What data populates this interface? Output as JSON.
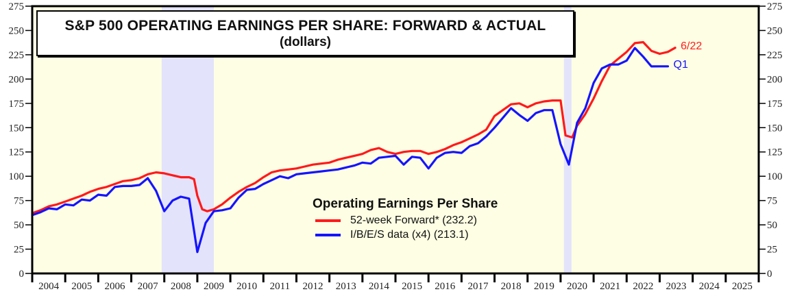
{
  "chart_data": {
    "type": "line",
    "title": "S&P 500 OPERATING EARNINGS PER SHARE: FORWARD & ACTUAL",
    "subtitle": "(dollars)",
    "xlabel": "",
    "ylabel": "",
    "xlim": [
      2004,
      2026
    ],
    "ylim": [
      0,
      275
    ],
    "y_ticks": [
      0,
      25,
      50,
      75,
      100,
      125,
      150,
      175,
      200,
      225,
      250,
      275
    ],
    "y_tick_labels": [
      "0",
      "25",
      "50",
      "75",
      "100",
      "125",
      "150",
      "175",
      "200",
      "225",
      "250",
      "275"
    ],
    "x_tick_labels": [
      "2004",
      "2005",
      "2006",
      "2007",
      "2008",
      "2009",
      "2010",
      "2011",
      "2012",
      "2013",
      "2014",
      "2015",
      "2016",
      "2017",
      "2018",
      "2019",
      "2020",
      "2021",
      "2022",
      "2023",
      "2024",
      "2025"
    ],
    "grid": false,
    "legend": {
      "title": "Operating Earnings Per Share",
      "placement": "bottom-center",
      "entries": [
        "52-week Forward* (232.2)",
        "I/B/E/S data (x4) (213.1)"
      ]
    },
    "recessions": [
      [
        2007.92,
        2009.5
      ],
      [
        2020.1,
        2020.33
      ]
    ],
    "colors": {
      "background": "#fefee4",
      "recession": "#e3e3fb",
      "forward": "#ff1a1a",
      "actual": "#1414ff"
    },
    "series": [
      {
        "name": "52-week Forward*",
        "color": "#ff1a1a",
        "end_label": "6/22",
        "x": [
          2004.0,
          2004.25,
          2004.5,
          2004.75,
          2005.0,
          2005.25,
          2005.5,
          2005.75,
          2006.0,
          2006.25,
          2006.5,
          2006.75,
          2007.0,
          2007.25,
          2007.5,
          2007.75,
          2008.0,
          2008.25,
          2008.5,
          2008.75,
          2008.9,
          2009.0,
          2009.15,
          2009.3,
          2009.5,
          2009.75,
          2010.0,
          2010.25,
          2010.5,
          2010.75,
          2011.0,
          2011.25,
          2011.5,
          2011.75,
          2012.0,
          2012.25,
          2012.5,
          2012.75,
          2013.0,
          2013.25,
          2013.5,
          2013.75,
          2014.0,
          2014.25,
          2014.5,
          2014.75,
          2015.0,
          2015.25,
          2015.5,
          2015.75,
          2016.0,
          2016.25,
          2016.5,
          2016.75,
          2017.0,
          2017.25,
          2017.5,
          2017.75,
          2018.0,
          2018.25,
          2018.5,
          2018.75,
          2019.0,
          2019.25,
          2019.5,
          2019.75,
          2020.0,
          2020.15,
          2020.35,
          2020.5,
          2020.75,
          2021.0,
          2021.25,
          2021.5,
          2021.75,
          2022.0,
          2022.25,
          2022.5,
          2022.75,
          2023.0,
          2023.25,
          2023.47
        ],
        "values": [
          62,
          65,
          69,
          71,
          74,
          77,
          80,
          84,
          87,
          89,
          92,
          95,
          96,
          98,
          102,
          104,
          103,
          101,
          99,
          99,
          97,
          80,
          66,
          64,
          66,
          71,
          78,
          84,
          89,
          93,
          99,
          104,
          106,
          107,
          108,
          110,
          112,
          113,
          114,
          117,
          119,
          121,
          123,
          127,
          129,
          125,
          123,
          125,
          126,
          126,
          123,
          125,
          128,
          132,
          135,
          139,
          143,
          148,
          162,
          168,
          174,
          175,
          171,
          175,
          177,
          178,
          178,
          142,
          140,
          152,
          164,
          180,
          198,
          214,
          221,
          228,
          237,
          238,
          229,
          226,
          228,
          232.2
        ]
      },
      {
        "name": "I/B/E/S data (x4)",
        "color": "#1414ff",
        "end_label": "Q1",
        "x": [
          2004.0,
          2004.25,
          2004.5,
          2004.75,
          2005.0,
          2005.25,
          2005.5,
          2005.75,
          2006.0,
          2006.25,
          2006.5,
          2006.75,
          2007.0,
          2007.25,
          2007.5,
          2007.75,
          2008.0,
          2008.25,
          2008.5,
          2008.75,
          2009.0,
          2009.25,
          2009.5,
          2009.75,
          2010.0,
          2010.25,
          2010.5,
          2010.75,
          2011.0,
          2011.25,
          2011.5,
          2011.75,
          2012.0,
          2012.25,
          2012.5,
          2012.75,
          2013.0,
          2013.25,
          2013.5,
          2013.75,
          2014.0,
          2014.25,
          2014.5,
          2014.75,
          2015.0,
          2015.25,
          2015.5,
          2015.75,
          2016.0,
          2016.25,
          2016.5,
          2016.75,
          2017.0,
          2017.25,
          2017.5,
          2017.75,
          2018.0,
          2018.25,
          2018.5,
          2018.75,
          2019.0,
          2019.25,
          2019.5,
          2019.75,
          2020.0,
          2020.25,
          2020.5,
          2020.75,
          2021.0,
          2021.25,
          2021.5,
          2021.75,
          2022.0,
          2022.25,
          2022.5,
          2022.75,
          2023.0,
          2023.25
        ],
        "values": [
          60,
          63,
          67,
          66,
          71,
          70,
          76,
          75,
          81,
          80,
          89,
          90,
          90,
          91,
          98,
          85,
          64,
          75,
          79,
          77,
          22,
          52,
          64,
          65,
          67,
          78,
          86,
          87,
          92,
          96,
          100,
          98,
          102,
          103,
          104,
          105,
          106,
          107,
          109,
          111,
          114,
          113,
          119,
          120,
          121,
          112,
          120,
          119,
          108,
          119,
          124,
          125,
          124,
          131,
          134,
          141,
          150,
          160,
          170,
          163,
          157,
          165,
          168,
          168,
          133,
          112,
          155,
          170,
          196,
          211,
          215,
          215,
          219,
          232,
          223,
          213,
          213.1,
          213.1
        ]
      }
    ]
  }
}
